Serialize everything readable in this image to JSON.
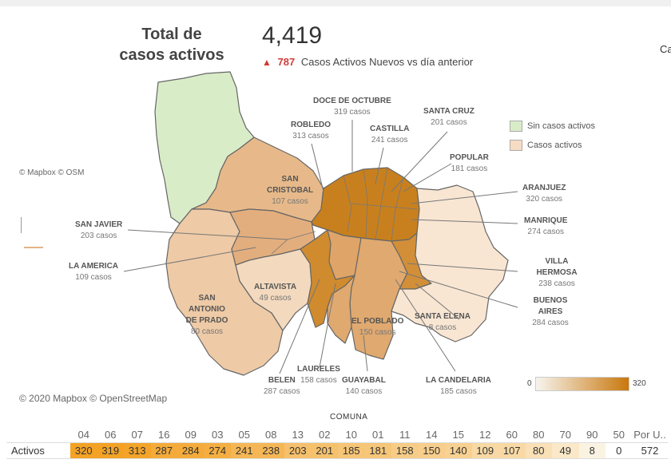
{
  "header": {
    "title_line1": "Total de",
    "title_line2": "casos activos",
    "total": "4,419",
    "new_cases": "787",
    "new_cases_text": "Casos Activos Nuevos  vs día anterior",
    "corner_text": "Ca"
  },
  "credits": {
    "small": "© Mapbox © OSM",
    "bottom": "© 2020 Mapbox © OpenStreetMap"
  },
  "legend": {
    "none": "Sin casos activos",
    "active": "Casos activos",
    "none_color": "#d9ecc8",
    "active_color": "#f7dcc4",
    "scale_min": "0",
    "scale_max": "320"
  },
  "labels": [
    {
      "name": "DOCE DE OCTUBRE",
      "cases": "319 casos"
    },
    {
      "name": "ROBLEDO",
      "cases": "313 casos"
    },
    {
      "name": "CASTILLA",
      "cases": "241 casos"
    },
    {
      "name": "SANTA CRUZ",
      "cases": "201 casos"
    },
    {
      "name": "POPULAR",
      "cases": "181 casos"
    },
    {
      "name": "SAN CRISTOBAL",
      "cases": "107 casos"
    },
    {
      "name": "ARANJUEZ",
      "cases": "320 casos"
    },
    {
      "name": "MANRIQUE",
      "cases": "274 casos"
    },
    {
      "name": "SAN JAVIER",
      "cases": "203 casos"
    },
    {
      "name": "LA AMERICA",
      "cases": "109 casos"
    },
    {
      "name": "VILLA HERMOSA",
      "cases": "238 casos"
    },
    {
      "name": "ALTAVISTA",
      "cases": "49 casos"
    },
    {
      "name": "SAN ANTONIO DE PRADO",
      "cases": "80 casos"
    },
    {
      "name": "BUENOS AIRES",
      "cases": "284 casos"
    },
    {
      "name": "SANTA ELENA",
      "cases": "8 casos"
    },
    {
      "name": "EL POBLADO",
      "cases": "150 casos"
    },
    {
      "name": "LAURELES",
      "cases": "158 casos"
    },
    {
      "name": "BELEN",
      "cases": "287 casos"
    },
    {
      "name": "GUAYABAL",
      "cases": "140 casos"
    },
    {
      "name": "LA CANDELARIA",
      "cases": "185 casos"
    }
  ],
  "table": {
    "title": "COMUNA",
    "row_label": "Activos",
    "codes": [
      "04",
      "06",
      "07",
      "16",
      "09",
      "03",
      "05",
      "08",
      "13",
      "02",
      "10",
      "01",
      "11",
      "14",
      "15",
      "12",
      "60",
      "80",
      "70",
      "90",
      "50",
      "Por U.."
    ],
    "values": [
      320,
      319,
      313,
      287,
      284,
      274,
      241,
      238,
      203,
      201,
      185,
      181,
      158,
      150,
      140,
      109,
      107,
      80,
      49,
      8,
      0,
      572
    ],
    "cells": [
      "320",
      "319",
      "313",
      "287",
      "284",
      "274",
      "241",
      "238",
      "203",
      "201",
      "185",
      "181",
      "158",
      "150",
      "140",
      "109",
      "107",
      "80",
      "49",
      "8",
      "0",
      "572"
    ],
    "max": 320,
    "color_high": "#f3a225",
    "color_low": "#fbf5e6"
  }
}
